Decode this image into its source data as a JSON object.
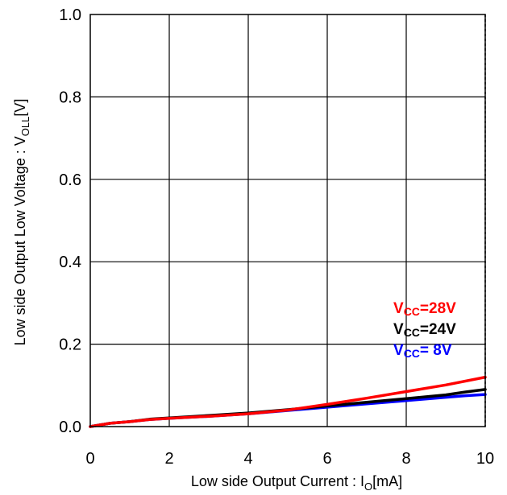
{
  "chart_data": {
    "type": "line",
    "xlabel": {
      "main": "Low side Output Current : I",
      "sub": "O",
      "unit": "[mA]"
    },
    "ylabel": {
      "main": "Low side Output Low Voltage : V",
      "sub": "OLL",
      "unit": "[V]"
    },
    "xlim": [
      0,
      10
    ],
    "ylim": [
      0,
      1.0
    ],
    "xticks": [
      0,
      2,
      4,
      6,
      8,
      10
    ],
    "yticks": [
      0.0,
      0.2,
      0.4,
      0.6,
      0.8,
      1.0
    ],
    "xtick_labels": [
      "0",
      "2",
      "4",
      "6",
      "8",
      "10"
    ],
    "ytick_labels": [
      "0.0",
      "0.2",
      "0.4",
      "0.6",
      "0.8",
      "1.0"
    ],
    "grid": true,
    "legend_placement": "lower-right",
    "series": [
      {
        "name": "VCC=8V",
        "legend": {
          "prefix": "V",
          "sub": "CC",
          "suffix": "= 8V"
        },
        "color": "#0000ff",
        "x": [
          0,
          0.5,
          1,
          1.5,
          2,
          3,
          4,
          5,
          6,
          7,
          8,
          9,
          9.5,
          10
        ],
        "y": [
          0.0,
          0.008,
          0.012,
          0.017,
          0.02,
          0.025,
          0.031,
          0.039,
          0.047,
          0.055,
          0.063,
          0.071,
          0.075,
          0.078
        ]
      },
      {
        "name": "VCC=24V",
        "legend": {
          "prefix": "V",
          "sub": "CC",
          "suffix": "=24V"
        },
        "color": "#000000",
        "x": [
          0,
          0.5,
          1,
          1.5,
          2,
          3,
          4,
          5,
          6,
          7,
          8,
          9,
          9.5,
          10
        ],
        "y": [
          0.0,
          0.008,
          0.012,
          0.018,
          0.021,
          0.027,
          0.033,
          0.041,
          0.05,
          0.059,
          0.068,
          0.077,
          0.084,
          0.09
        ]
      },
      {
        "name": "VCC=28V",
        "legend": {
          "prefix": "V",
          "sub": "CC",
          "suffix": "=28V"
        },
        "color": "#ff0000",
        "x": [
          0,
          0.5,
          1,
          1.5,
          2,
          3,
          4,
          5,
          6,
          7,
          8,
          9,
          10
        ],
        "y": [
          0.0,
          0.008,
          0.012,
          0.017,
          0.02,
          0.025,
          0.031,
          0.04,
          0.054,
          0.069,
          0.085,
          0.101,
          0.12
        ]
      }
    ]
  }
}
